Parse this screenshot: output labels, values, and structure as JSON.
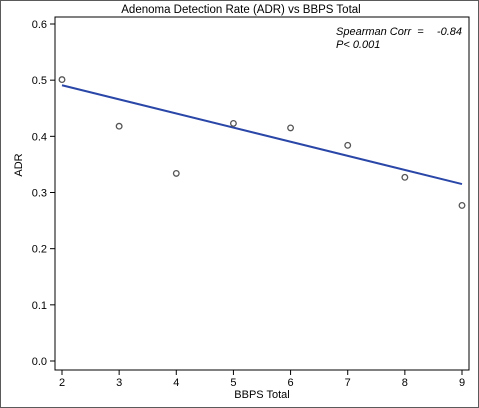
{
  "chart_data": {
    "type": "scatter",
    "title": "Adenoma Detection Rate (ADR) vs BBPS Total",
    "xlabel": "BBPS Total",
    "ylabel": "ADR",
    "xlim": [
      2,
      9
    ],
    "ylim": [
      0.0,
      0.6
    ],
    "x_ticks": [
      "2",
      "3",
      "4",
      "5",
      "6",
      "7",
      "8",
      "9"
    ],
    "y_ticks": [
      "0.0",
      "0.1",
      "0.2",
      "0.3",
      "0.4",
      "0.5",
      "0.6"
    ],
    "grid": false,
    "series": [
      {
        "kind": "points",
        "x": [
          2,
          3,
          4,
          5,
          6,
          7,
          8,
          9
        ],
        "y": [
          0.501,
          0.418,
          0.334,
          0.423,
          0.415,
          0.384,
          0.327,
          0.277
        ]
      },
      {
        "kind": "fit-line",
        "x": [
          2,
          9
        ],
        "y": [
          0.491,
          0.315
        ]
      }
    ],
    "annotation": {
      "line1_label": "Spearman Corr  =",
      "line1_value": "-0.84",
      "line2": "P< 0.001"
    },
    "colors": {
      "line": "#2a47a8",
      "points": "#555555",
      "axes": "#000000"
    }
  }
}
